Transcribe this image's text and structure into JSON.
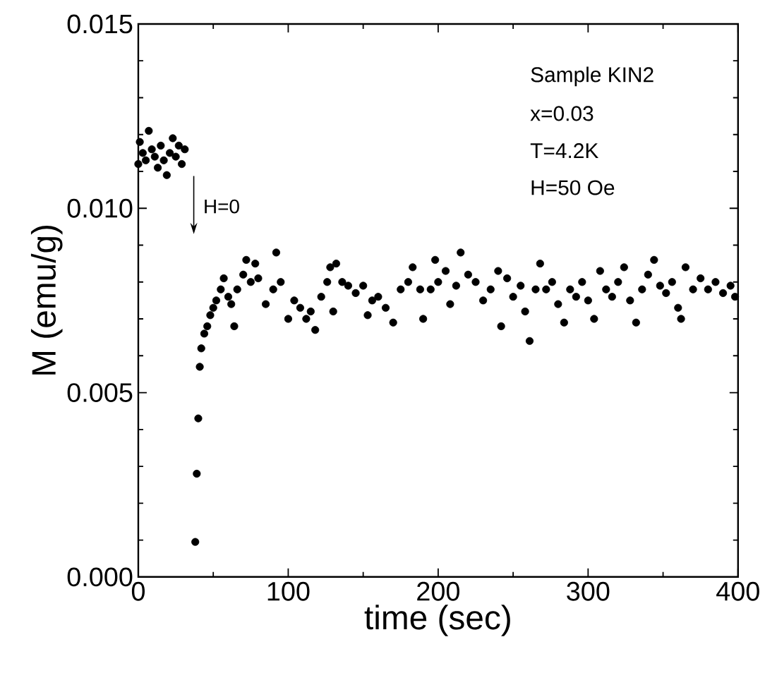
{
  "chart_data": {
    "type": "scatter",
    "xlabel": "time (sec)",
    "ylabel": "M (emu/g)",
    "xlim": [
      0,
      400
    ],
    "xticks": [
      0,
      100,
      200,
      300,
      400
    ],
    "ylim": [
      0,
      0.015
    ],
    "yticks": [
      {
        "value": 0,
        "label": "0.000"
      },
      {
        "value": 0.005,
        "label": "0.005"
      },
      {
        "value": 0.01,
        "label": "0.010"
      },
      {
        "value": 0.015,
        "label": "0.015"
      }
    ],
    "grid": false,
    "annotations": [
      "Sample KIN2",
      "x=0.03",
      "T=4.2K",
      "H=50 Oe",
      "H=0"
    ],
    "series": [
      {
        "color": "#000000",
        "x": [
          0,
          1,
          3,
          5,
          7,
          9,
          11,
          13,
          15,
          17,
          19,
          21,
          23,
          25,
          27,
          29,
          31,
          38,
          39,
          40,
          41,
          42,
          44,
          46,
          48,
          50,
          52,
          55,
          57,
          60,
          62,
          64,
          66,
          70,
          72,
          75,
          78,
          80,
          85,
          90,
          92,
          95,
          100,
          104,
          108,
          112,
          115,
          118,
          122,
          126,
          128,
          130,
          132,
          136,
          140,
          145,
          150,
          153,
          156,
          160,
          165,
          170,
          175,
          180,
          183,
          188,
          190,
          195,
          198,
          200,
          205,
          208,
          212,
          215,
          220,
          225,
          230,
          235,
          240,
          242,
          246,
          250,
          255,
          258,
          261,
          265,
          268,
          272,
          276,
          280,
          284,
          288,
          292,
          296,
          300,
          304,
          308,
          312,
          316,
          320,
          324,
          328,
          332,
          336,
          340,
          344,
          348,
          352,
          356,
          360,
          362,
          365,
          370,
          375,
          380,
          385,
          390,
          395,
          398
        ],
        "values": [
          0.0112,
          0.0118,
          0.0115,
          0.0113,
          0.0121,
          0.0116,
          0.0114,
          0.0111,
          0.0117,
          0.0113,
          0.0109,
          0.0115,
          0.0119,
          0.0114,
          0.0117,
          0.0112,
          0.0116,
          0.00095,
          0.0028,
          0.0043,
          0.0057,
          0.0062,
          0.0066,
          0.0068,
          0.0071,
          0.0073,
          0.0075,
          0.0078,
          0.0081,
          0.0076,
          0.0074,
          0.0068,
          0.0078,
          0.0082,
          0.0086,
          0.008,
          0.0085,
          0.0081,
          0.0074,
          0.0078,
          0.0088,
          0.008,
          0.007,
          0.0075,
          0.0073,
          0.007,
          0.0072,
          0.0067,
          0.0076,
          0.008,
          0.0084,
          0.0072,
          0.0085,
          0.008,
          0.0079,
          0.0077,
          0.0079,
          0.0071,
          0.0075,
          0.0076,
          0.0073,
          0.0069,
          0.0078,
          0.008,
          0.0084,
          0.0078,
          0.007,
          0.0078,
          0.0086,
          0.008,
          0.0083,
          0.0074,
          0.0079,
          0.0088,
          0.0082,
          0.008,
          0.0075,
          0.0078,
          0.0083,
          0.0068,
          0.0081,
          0.0076,
          0.0079,
          0.0072,
          0.0064,
          0.0078,
          0.0085,
          0.0078,
          0.008,
          0.0074,
          0.0069,
          0.0078,
          0.0076,
          0.008,
          0.0075,
          0.007,
          0.0083,
          0.0078,
          0.0076,
          0.008,
          0.0084,
          0.0075,
          0.0069,
          0.0078,
          0.0082,
          0.0086,
          0.0079,
          0.0077,
          0.008,
          0.0073,
          0.007,
          0.0084,
          0.0078,
          0.0081,
          0.0078,
          0.008,
          0.0077,
          0.0079,
          0.0076
        ]
      }
    ]
  }
}
